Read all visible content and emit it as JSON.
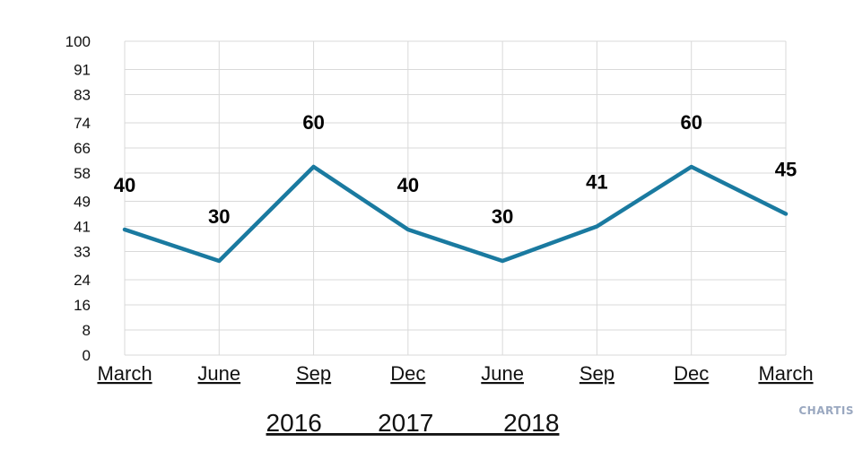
{
  "chart_data": {
    "type": "line",
    "categories": [
      "March",
      "June",
      "Sep",
      "Dec",
      "June",
      "Sep",
      "Dec",
      "March"
    ],
    "values": [
      40,
      30,
      60,
      40,
      30,
      41,
      60,
      45
    ],
    "data_labels": [
      "40",
      "30",
      "60",
      "40",
      "30",
      "41",
      "60",
      "45"
    ],
    "yticks": [
      "0",
      "8",
      "16",
      "24",
      "33",
      "41",
      "49",
      "58",
      "66",
      "74",
      "83",
      "91",
      "100"
    ],
    "ylim": [
      0,
      100
    ],
    "year_axis_label": "2016        2017          2018",
    "grid": true,
    "colors": {
      "line": "#1a7aa0",
      "grid": "#d9d9d9"
    }
  },
  "watermark": {
    "text": "CHARTIS"
  }
}
